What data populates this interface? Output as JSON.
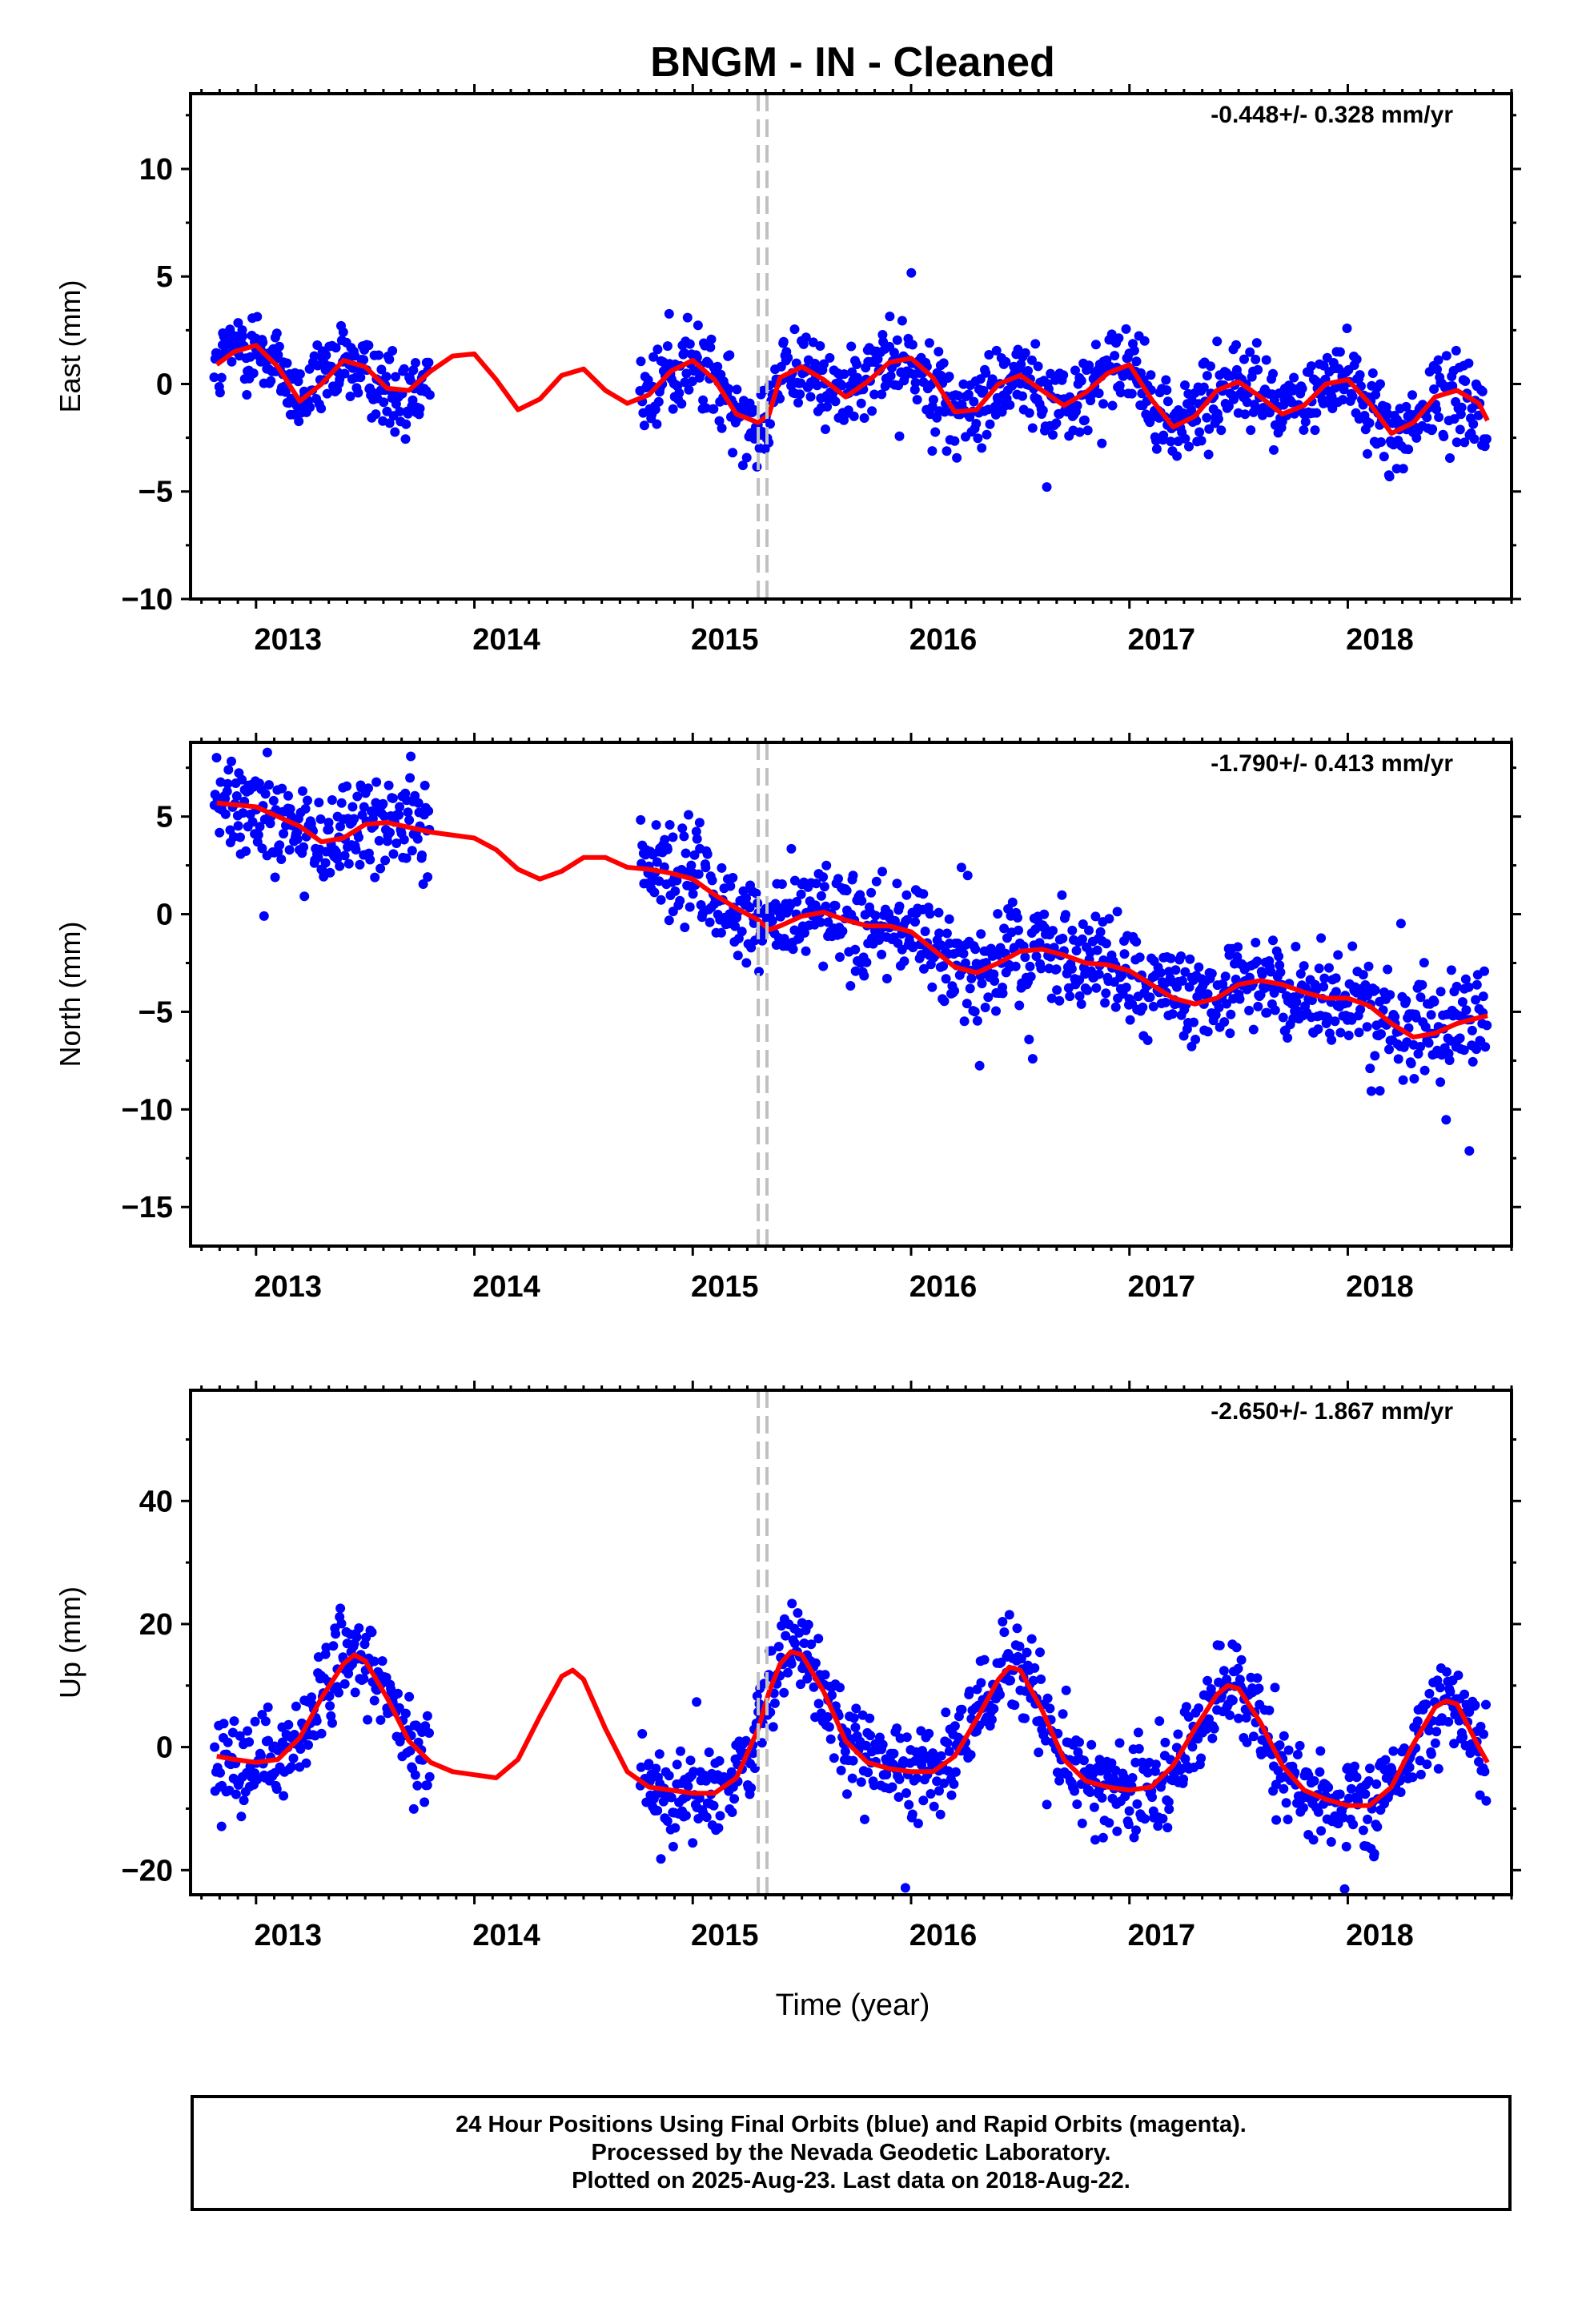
{
  "title": "BNGM  - IN - Cleaned",
  "xlabel": "Time (year)",
  "footer": {
    "line1": "24 Hour Positions Using Final Orbits (blue) and Rapid Orbits (magenta).",
    "line2": "Processed by the Nevada Geodetic Laboratory.",
    "line3": "Plotted on 2025-Aug-23. Last data on 2018-Aug-22."
  },
  "colors": {
    "points": "#0000ff",
    "fit": "#ff0000",
    "event_lines": "#c0c0c0"
  },
  "chart_data": [
    {
      "type": "scatter",
      "component": "east",
      "ylabel": "East (mm)",
      "rate_label": "-0.448+/- 0.328 mm/yr",
      "xlim": [
        2012.7,
        2018.75
      ],
      "ylim": [
        -10,
        13.5
      ],
      "xticks": [
        2013,
        2014,
        2015,
        2016,
        2017,
        2018
      ],
      "yticks": [
        -10,
        -5,
        0,
        5,
        10
      ],
      "event_lines_x": [
        2015.3,
        2015.34
      ],
      "fit_line": {
        "x": [
          2012.82,
          2012.9,
          2013.0,
          2013.1,
          2013.2,
          2013.3,
          2013.4,
          2013.5,
          2013.6,
          2013.7,
          2013.8,
          2013.9,
          2014.0,
          2014.1,
          2014.2,
          2014.3,
          2014.4,
          2014.5,
          2014.6,
          2014.7,
          2014.8,
          2014.9,
          2015.0,
          2015.1,
          2015.2,
          2015.3,
          2015.35,
          2015.4,
          2015.5,
          2015.6,
          2015.7,
          2015.8,
          2015.9,
          2016.0,
          2016.1,
          2016.2,
          2016.3,
          2016.4,
          2016.5,
          2016.6,
          2016.7,
          2016.8,
          2016.9,
          2017.0,
          2017.1,
          2017.2,
          2017.3,
          2017.4,
          2017.5,
          2017.6,
          2017.7,
          2017.8,
          2017.9,
          2018.0,
          2018.1,
          2018.2,
          2018.3,
          2018.4,
          2018.5,
          2018.6,
          2018.64
        ],
        "y": [
          0.9,
          1.5,
          1.8,
          0.8,
          -0.8,
          0.0,
          1.1,
          0.8,
          -0.2,
          -0.3,
          0.6,
          1.3,
          1.4,
          0.2,
          -1.2,
          -0.7,
          0.4,
          0.7,
          -0.3,
          -0.9,
          -0.5,
          0.6,
          1.1,
          0.2,
          -1.4,
          -1.8,
          -1.4,
          0.3,
          0.8,
          0.2,
          -0.6,
          0.1,
          1.0,
          1.2,
          0.3,
          -1.3,
          -1.2,
          0.0,
          0.4,
          -0.3,
          -1.0,
          -0.4,
          0.5,
          0.9,
          -0.7,
          -2.0,
          -1.5,
          -0.3,
          0.1,
          -0.6,
          -1.4,
          -1.0,
          0.0,
          0.2,
          -0.9,
          -2.3,
          -1.8,
          -0.6,
          -0.3,
          -0.9,
          -1.7
        ]
      },
      "scatter_spread": 1.2,
      "scatter_segments": [
        [
          2012.81,
          2013.8
        ],
        [
          2014.76,
          2018.64
        ]
      ]
    },
    {
      "type": "scatter",
      "component": "north",
      "ylabel": "North (mm)",
      "rate_label": "-1.790+/- 0.413 mm/yr",
      "xlim": [
        2012.7,
        2018.75
      ],
      "ylim": [
        -17,
        8.8
      ],
      "xticks": [
        2013,
        2014,
        2015,
        2016,
        2017,
        2018
      ],
      "yticks": [
        -15,
        -10,
        -5,
        0,
        5
      ],
      "event_lines_x": [
        2015.3,
        2015.34
      ],
      "fit_line": {
        "x": [
          2012.82,
          2013.0,
          2013.2,
          2013.3,
          2013.4,
          2013.5,
          2013.6,
          2013.8,
          2014.0,
          2014.1,
          2014.2,
          2014.3,
          2014.4,
          2014.5,
          2014.6,
          2014.7,
          2014.8,
          2014.9,
          2015.0,
          2015.1,
          2015.2,
          2015.3,
          2015.35,
          2015.4,
          2015.5,
          2015.6,
          2015.7,
          2015.8,
          2015.9,
          2016.0,
          2016.1,
          2016.2,
          2016.3,
          2016.4,
          2016.5,
          2016.6,
          2016.7,
          2016.8,
          2016.9,
          2017.0,
          2017.1,
          2017.2,
          2017.3,
          2017.4,
          2017.5,
          2017.6,
          2017.7,
          2017.8,
          2017.9,
          2018.0,
          2018.1,
          2018.2,
          2018.3,
          2018.4,
          2018.5,
          2018.6,
          2018.64
        ],
        "y": [
          5.7,
          5.5,
          4.5,
          3.7,
          3.9,
          4.6,
          4.7,
          4.2,
          3.9,
          3.3,
          2.3,
          1.8,
          2.2,
          2.9,
          2.9,
          2.4,
          2.3,
          2.1,
          1.8,
          1.0,
          0.3,
          -0.3,
          -0.8,
          -0.6,
          -0.1,
          0.1,
          -0.3,
          -0.6,
          -0.6,
          -0.9,
          -1.8,
          -2.7,
          -3.0,
          -2.5,
          -1.9,
          -1.8,
          -2.1,
          -2.5,
          -2.6,
          -2.9,
          -3.6,
          -4.3,
          -4.6,
          -4.3,
          -3.6,
          -3.4,
          -3.6,
          -4.0,
          -4.3,
          -4.3,
          -4.7,
          -5.6,
          -6.3,
          -6.1,
          -5.6,
          -5.3,
          -5.2
        ]
      },
      "scatter_spread": 1.5,
      "scatter_segments": [
        [
          2012.81,
          2013.8
        ],
        [
          2014.76,
          2018.64
        ]
      ]
    },
    {
      "type": "scatter",
      "component": "up",
      "ylabel": "Up (mm)",
      "rate_label": "-2.650+/- 1.867 mm/yr",
      "xlim": [
        2012.7,
        2018.75
      ],
      "ylim": [
        -24,
        58
      ],
      "xticks": [
        2013,
        2014,
        2015,
        2016,
        2017,
        2018
      ],
      "yticks": [
        -20,
        0,
        20,
        40
      ],
      "event_lines_x": [
        2015.3,
        2015.34
      ],
      "fit_line": {
        "x": [
          2012.82,
          2012.9,
          2013.0,
          2013.1,
          2013.2,
          2013.3,
          2013.4,
          2013.45,
          2013.5,
          2013.6,
          2013.7,
          2013.8,
          2013.9,
          2014.0,
          2014.1,
          2014.2,
          2014.3,
          2014.4,
          2014.45,
          2014.5,
          2014.6,
          2014.7,
          2014.8,
          2014.9,
          2015.0,
          2015.1,
          2015.2,
          2015.3,
          2015.35,
          2015.4,
          2015.45,
          2015.5,
          2015.6,
          2015.7,
          2015.8,
          2015.9,
          2016.0,
          2016.1,
          2016.2,
          2016.3,
          2016.4,
          2016.45,
          2016.5,
          2016.6,
          2016.7,
          2016.8,
          2016.9,
          2017.0,
          2017.1,
          2017.2,
          2017.3,
          2017.4,
          2017.45,
          2017.5,
          2017.6,
          2017.7,
          2017.8,
          2017.9,
          2018.0,
          2018.1,
          2018.2,
          2018.3,
          2018.4,
          2018.45,
          2018.5,
          2018.6,
          2018.64
        ],
        "y": [
          -1.5,
          -2.0,
          -2.5,
          -2.0,
          1.5,
          8.0,
          13.5,
          15.0,
          14.0,
          8.0,
          1.0,
          -2.5,
          -4.0,
          -4.5,
          -5.0,
          -2.0,
          5.0,
          11.5,
          12.5,
          11.0,
          3.0,
          -4.0,
          -6.5,
          -7.0,
          -7.5,
          -7.5,
          -5.0,
          3.0,
          9.0,
          13.5,
          15.5,
          15.0,
          9.0,
          1.0,
          -2.5,
          -3.5,
          -4.0,
          -4.0,
          -1.5,
          4.5,
          11.0,
          13.0,
          12.5,
          6.0,
          -2.0,
          -5.5,
          -6.5,
          -7.0,
          -6.5,
          -3.0,
          3.0,
          8.5,
          10.0,
          9.5,
          4.0,
          -3.0,
          -7.0,
          -8.5,
          -9.5,
          -9.5,
          -6.5,
          0.5,
          6.5,
          7.5,
          7.0,
          0.0,
          -2.5
        ]
      },
      "scatter_spread": 4.5,
      "scatter_segments": [
        [
          2012.81,
          2013.8
        ],
        [
          2014.76,
          2018.64
        ]
      ]
    }
  ]
}
